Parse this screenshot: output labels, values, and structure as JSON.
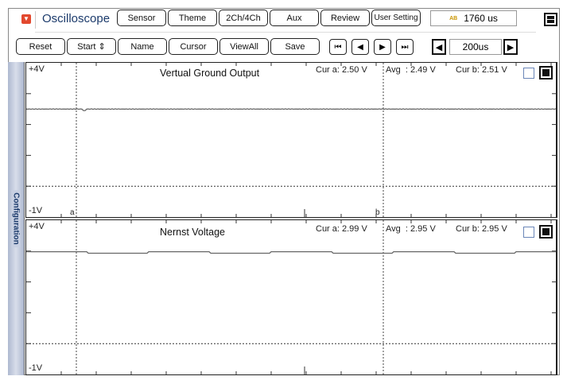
{
  "app": {
    "title": "Oscilloscope"
  },
  "toolbar1": [
    {
      "label": "Sensor"
    },
    {
      "label": "Theme"
    },
    {
      "label": "2Ch/4Ch"
    },
    {
      "label": "Aux"
    },
    {
      "label": "Review"
    },
    {
      "label": "User Setting"
    }
  ],
  "readout": {
    "icon_text": "AB",
    "value": "1760 us"
  },
  "toolbar2": [
    {
      "label": "Reset"
    },
    {
      "label": "Start ⇕"
    },
    {
      "label": "Name"
    },
    {
      "label": "Cursor"
    },
    {
      "label": "ViewAll"
    },
    {
      "label": "Save"
    }
  ],
  "nav": {
    "first": "⏮",
    "prev": "◀",
    "next": "▶",
    "last": "⏭"
  },
  "timebase": {
    "dec": "◀",
    "value": "200us",
    "inc": "▶"
  },
  "sidebar": {
    "label": "Configuration"
  },
  "chart_data": [
    {
      "type": "line",
      "title": "Vertual Ground Output",
      "ytop": "+4V",
      "ybottom": "-1V",
      "ylim": [
        -1,
        4
      ],
      "cursor_a_label": "a",
      "cursor_b_label": "b",
      "cur_a": "Cur a: 2.50 V",
      "avg": "Avg  : 2.49 V",
      "cur_b": "Cur b: 2.51 V",
      "level": 2.5,
      "ripple": 0.01,
      "dip_at_cursor": true
    },
    {
      "type": "line",
      "title": "Nernst Voltage",
      "ytop": "+4V",
      "ybottom": "-1V",
      "ylim": [
        -1,
        4
      ],
      "cur_a": "Cur a: 2.99 V",
      "avg": "Avg  : 2.95 V",
      "cur_b": "Cur b: 2.95 V",
      "level": 2.95,
      "ripple": 0.04
    }
  ],
  "colors": {
    "trace": "#666666",
    "accent": "#e2482e",
    "title": "#1b3a6b"
  }
}
